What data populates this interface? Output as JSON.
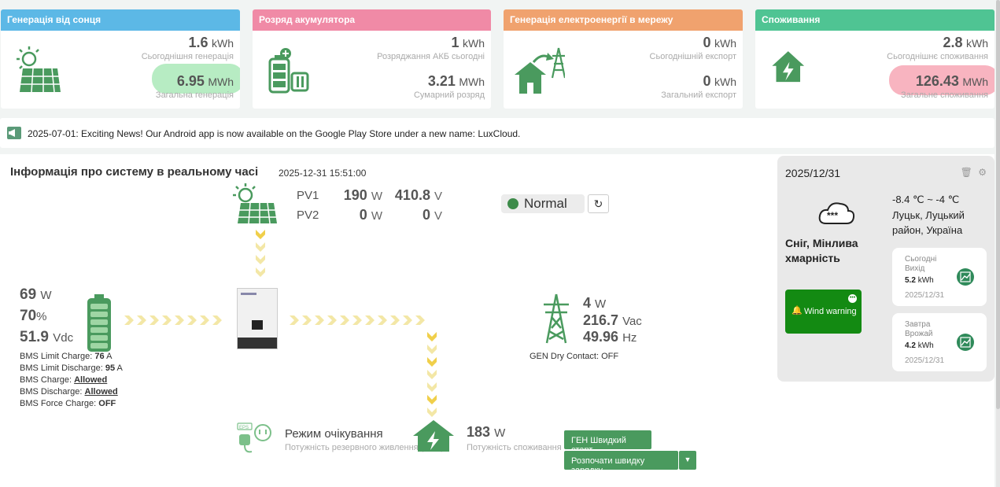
{
  "cards": {
    "solar": {
      "title": "Генерація від сонця",
      "color": "#5cb8e6",
      "v1": "1.6",
      "u1": "kWh",
      "l1": "Сьогоднішня генерація",
      "v2": "6.95",
      "u2": "MWh",
      "l2": "Загальна генерація"
    },
    "battery": {
      "title": "Розряд акумулятора",
      "color": "#f08aa6",
      "v1": "1",
      "u1": "kWh",
      "l1": "Розряджання АКБ сьогодні",
      "v2": "3.21",
      "u2": "MWh",
      "l2": "Сумарний розряд"
    },
    "grid": {
      "title": "Генерація електроенергії в мережу",
      "color": "#f0a26e",
      "v1": "0",
      "u1": "kWh",
      "l1": "Сьогоднішній експорт",
      "v2": "0",
      "u2": "kWh",
      "l2": "Загальний експорт"
    },
    "consumption": {
      "title": "Споживання",
      "color": "#4fc493",
      "v1": "2.8",
      "u1": "kWh",
      "l1": "Сьогоднішнє споживання",
      "v2": "126.43",
      "u2": "MWh",
      "l2": "Загальне споживання"
    }
  },
  "news": {
    "text": "2025-07-01: Exciting News! Our Android app is now available on the Google Play Store under a new name: LuxCloud."
  },
  "system": {
    "title": "Інформація про систему в реальному часі",
    "time": "2025-12-31 15:51:00",
    "pv1": {
      "label": "PV1",
      "w": "190",
      "wu": "W",
      "v": "410.8",
      "vu": "V"
    },
    "pv2": {
      "label": "PV2",
      "w": "0",
      "wu": "W",
      "v": "0",
      "vu": "V"
    },
    "status": "Normal",
    "battery": {
      "w": "69",
      "wu": "W",
      "soc": "70",
      "socu": "%",
      "v": "51.9",
      "vu": "Vdc"
    },
    "bms": {
      "lc_label": "BMS Limit Charge:",
      "lc_val": "76",
      "lc_unit": "A",
      "ld_label": "BMS Limit Discharge:",
      "ld_val": "95",
      "ld_unit": "A",
      "c_label": "BMS Charge:",
      "c_val": "Allowed",
      "d_label": "BMS Discharge:",
      "d_val": "Allowed",
      "f_label": "BMS Force Charge:",
      "f_val": "OFF"
    },
    "grid": {
      "w": "4",
      "wu": "W",
      "v": "216.7",
      "vu": "Vac",
      "hz": "49.96",
      "hzu": "Hz",
      "gen": "GEN Dry Contact: OFF"
    },
    "eps": {
      "title": "Режим очікування",
      "sub": "Потужність резервного живлення (EPS)",
      "plug_label": "EPS"
    },
    "load": {
      "w": "183",
      "wu": "W",
      "sub": "Потужність споживання"
    },
    "btn_gen": "ГЕН Швидкий старт",
    "btn_charge": "Розпочати швидку зарядку"
  },
  "weather": {
    "date": "2025/12/31",
    "temp": "-8.4 ℃ ~ -4 ℃",
    "location": "Луцьк, Луцький район, Україна",
    "desc": "Сніг, Мінлива хмарність",
    "alert": "Wind warning",
    "today": {
      "t": "Сьогодні Вихід",
      "v": "5.2",
      "u": "kWh",
      "d": "2025/12/31"
    },
    "tomorrow": {
      "t": "Завтра Врожай",
      "v": "4.2",
      "u": "kWh",
      "d": "2025/12/31"
    }
  }
}
